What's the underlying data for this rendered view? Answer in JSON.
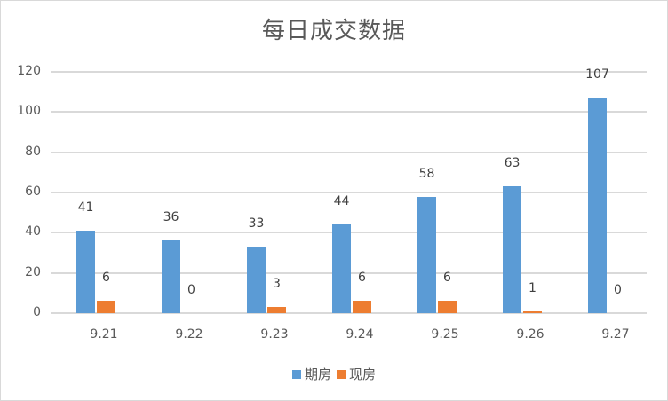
{
  "chart_data": {
    "type": "bar",
    "title": "每日成交数据",
    "categories": [
      "9.21",
      "9.22",
      "9.23",
      "9.24",
      "9.25",
      "9.26",
      "9.27"
    ],
    "series": [
      {
        "name": "期房",
        "color": "#5b9bd5",
        "values": [
          41,
          36,
          33,
          44,
          58,
          63,
          107
        ]
      },
      {
        "name": "现房",
        "color": "#ed7d31",
        "values": [
          6,
          0,
          3,
          6,
          6,
          1,
          0
        ]
      }
    ],
    "xlabel": "",
    "ylabel": "",
    "ylim": [
      0,
      120
    ],
    "yticks": [
      0,
      20,
      40,
      60,
      80,
      100,
      120
    ],
    "grid": true,
    "legend_position": "bottom",
    "data_labels": true
  }
}
